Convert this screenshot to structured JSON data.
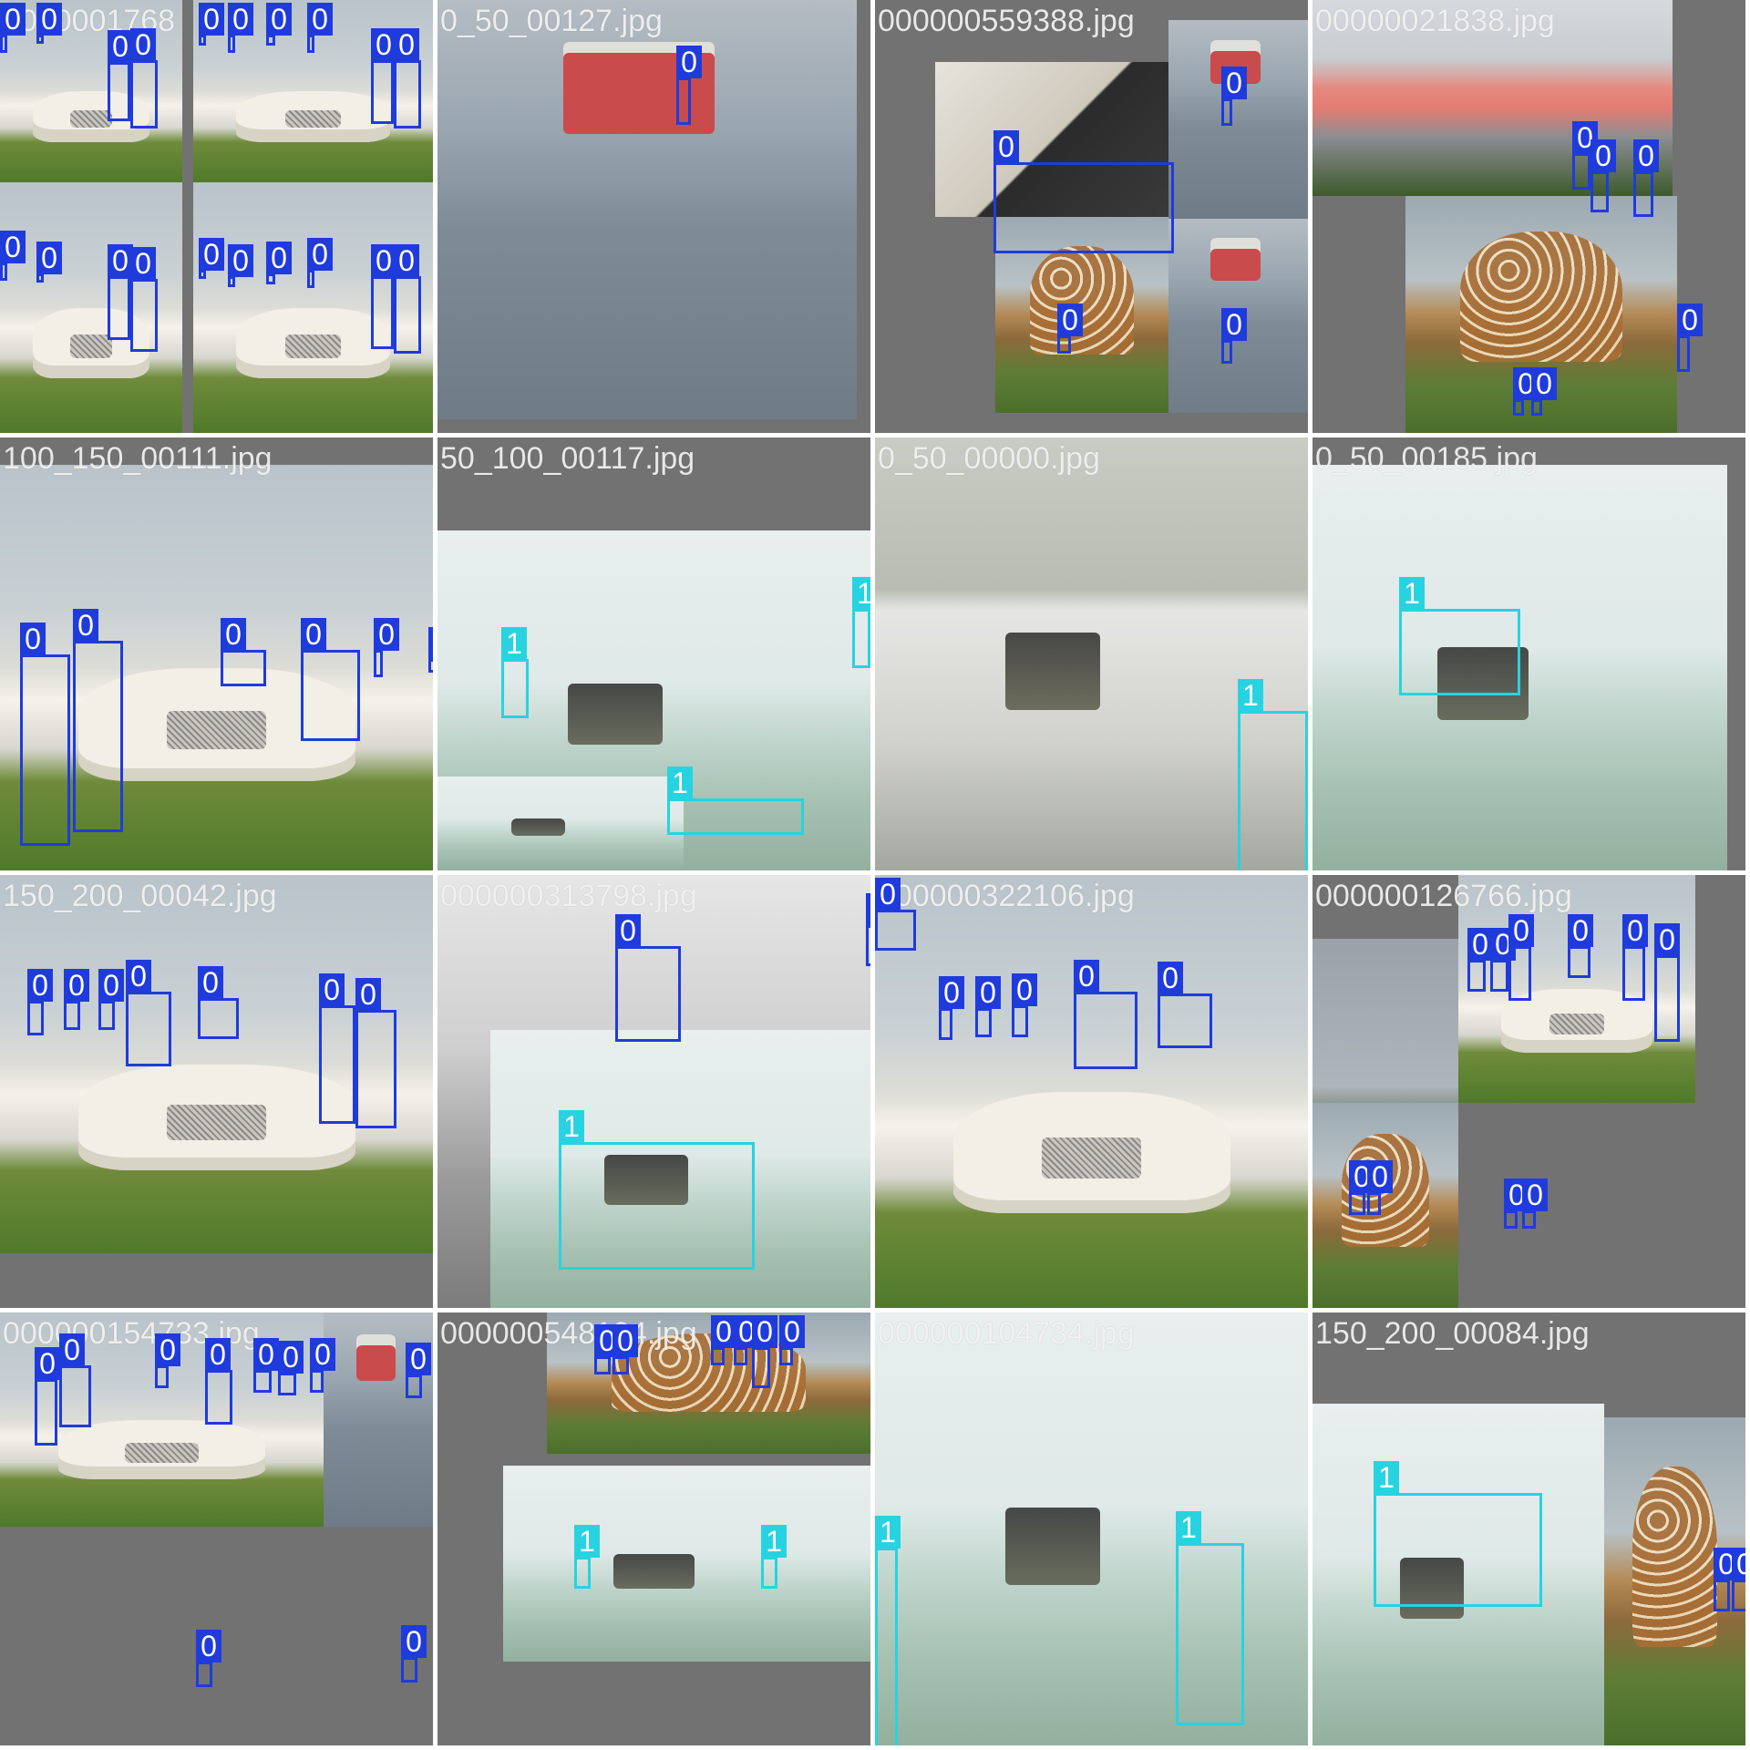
{
  "classes": {
    "0": {
      "label": "0",
      "color": "#1f3bdc"
    },
    "1": {
      "label": "1",
      "color": "#27d3e0"
    }
  },
  "tiles": [
    {
      "filename": "0000001768",
      "scene": [
        "car_grass",
        "car_grass",
        "car_grass",
        "car_grass"
      ],
      "scene_layout": "grid",
      "boxes": []
    },
    {
      "filename": "0_50_00127.jpg",
      "scene": [
        "street"
      ],
      "scene_layout": "full",
      "boxes": []
    },
    {
      "filename": "000000559388.jpg",
      "scene": [
        "room",
        "street",
        "giraffe",
        "street"
      ],
      "scene_layout": "mixed",
      "boxes": []
    },
    {
      "filename": "00000021838.jpg",
      "scene": [
        "city",
        "giraffe"
      ],
      "scene_layout": "top-bottom",
      "boxes": []
    },
    {
      "filename": "100_150_00111.jpg",
      "scene": [
        "car_grass"
      ],
      "scene_layout": "full",
      "boxes": []
    },
    {
      "filename": "50_100_00117.jpg",
      "scene": [
        "lab",
        "lab"
      ],
      "scene_layout": "mixed",
      "boxes": []
    },
    {
      "filename": "0_50_00000.jpg",
      "scene": [
        "lab_gray"
      ],
      "scene_layout": "full",
      "boxes": []
    },
    {
      "filename": "0_50_00185.jpg",
      "scene": [
        "lab"
      ],
      "scene_layout": "full",
      "boxes": []
    },
    {
      "filename": "150_200_00042.jpg",
      "scene": [
        "car_grass"
      ],
      "scene_layout": "full",
      "boxes": []
    },
    {
      "filename": "000000313798.jpg",
      "scene": [
        "street_gray",
        "lab"
      ],
      "scene_layout": "mixed",
      "boxes": []
    },
    {
      "filename": "000000322106.jpg",
      "scene": [
        "car_grass"
      ],
      "scene_layout": "full",
      "boxes": []
    },
    {
      "filename": "000000126766.jpg",
      "scene": [
        "park",
        "giraffe",
        "car_grass"
      ],
      "scene_layout": "mixed",
      "boxes": []
    },
    {
      "filename": "000000154733.jpg",
      "scene": [
        "car_grass",
        "street"
      ],
      "scene_layout": "mixed",
      "boxes": []
    },
    {
      "filename": "000000548104.jpg",
      "scene": [
        "giraffe",
        "lab"
      ],
      "scene_layout": "mixed",
      "boxes": []
    },
    {
      "filename": "000000104734.jpg",
      "scene": [
        "lab"
      ],
      "scene_layout": "full",
      "boxes": []
    },
    {
      "filename": "150_200_00084.jpg",
      "scene": [
        "lab",
        "giraffe"
      ],
      "scene_layout": "mixed",
      "boxes": []
    }
  ]
}
